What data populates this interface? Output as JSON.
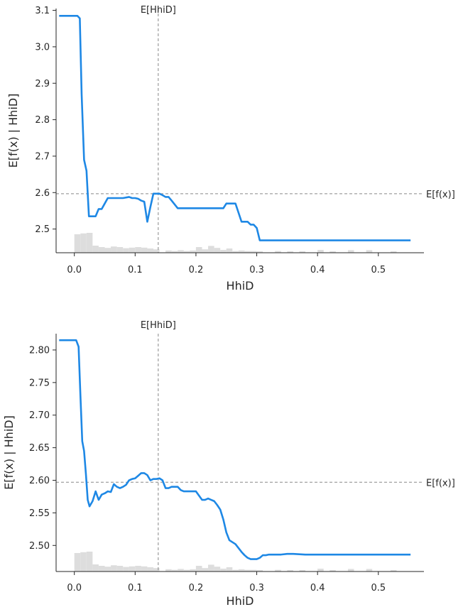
{
  "chart_data": [
    {
      "type": "line",
      "title": "",
      "xlabel": "HhiD",
      "ylabel": "E[f(x) | HhiD]",
      "xlim": [
        -0.03,
        0.575
      ],
      "ylim": [
        2.435,
        3.105
      ],
      "xticks": [
        0.0,
        0.1,
        0.2,
        0.3,
        0.4,
        0.5
      ],
      "xtick_labels": [
        "0.0",
        "0.1",
        "0.2",
        "0.3",
        "0.4",
        "0.5"
      ],
      "yticks": [
        2.5,
        2.6,
        2.7,
        2.8,
        2.9,
        3.0,
        3.1
      ],
      "ytick_labels": [
        "2.5",
        "2.6",
        "2.7",
        "2.8",
        "2.9",
        "3.0",
        "3.1"
      ],
      "grid": false,
      "line_color": "#1E88E5",
      "expected_x": 0.138,
      "expected_x_label": "E[HhiD]",
      "expected_y": 2.597,
      "expected_y_label": "E[f(x)]",
      "histogram": {
        "color": "#dddddd",
        "bins": [
          {
            "x0": 0.0,
            "x1": 0.01,
            "height": 0.65
          },
          {
            "x0": 0.01,
            "x1": 0.02,
            "height": 0.68
          },
          {
            "x0": 0.02,
            "x1": 0.03,
            "height": 0.7
          },
          {
            "x0": 0.03,
            "x1": 0.04,
            "height": 0.25
          },
          {
            "x0": 0.04,
            "x1": 0.05,
            "height": 0.2
          },
          {
            "x0": 0.05,
            "x1": 0.06,
            "height": 0.17
          },
          {
            "x0": 0.06,
            "x1": 0.07,
            "height": 0.22
          },
          {
            "x0": 0.07,
            "x1": 0.08,
            "height": 0.2
          },
          {
            "x0": 0.08,
            "x1": 0.09,
            "height": 0.16
          },
          {
            "x0": 0.09,
            "x1": 0.1,
            "height": 0.18
          },
          {
            "x0": 0.1,
            "x1": 0.11,
            "height": 0.2
          },
          {
            "x0": 0.11,
            "x1": 0.12,
            "height": 0.18
          },
          {
            "x0": 0.12,
            "x1": 0.13,
            "height": 0.15
          },
          {
            "x0": 0.13,
            "x1": 0.14,
            "height": 0.12
          },
          {
            "x0": 0.15,
            "x1": 0.16,
            "height": 0.08
          },
          {
            "x0": 0.16,
            "x1": 0.17,
            "height": 0.06
          },
          {
            "x0": 0.17,
            "x1": 0.18,
            "height": 0.09
          },
          {
            "x0": 0.18,
            "x1": 0.19,
            "height": 0.06
          },
          {
            "x0": 0.19,
            "x1": 0.2,
            "height": 0.08
          },
          {
            "x0": 0.2,
            "x1": 0.21,
            "height": 0.2
          },
          {
            "x0": 0.21,
            "x1": 0.22,
            "height": 0.12
          },
          {
            "x0": 0.22,
            "x1": 0.23,
            "height": 0.24
          },
          {
            "x0": 0.23,
            "x1": 0.24,
            "height": 0.17
          },
          {
            "x0": 0.24,
            "x1": 0.25,
            "height": 0.1
          },
          {
            "x0": 0.25,
            "x1": 0.26,
            "height": 0.15
          },
          {
            "x0": 0.26,
            "x1": 0.27,
            "height": 0.06
          },
          {
            "x0": 0.27,
            "x1": 0.28,
            "height": 0.08
          },
          {
            "x0": 0.28,
            "x1": 0.29,
            "height": 0.06
          },
          {
            "x0": 0.29,
            "x1": 0.3,
            "height": 0.06
          },
          {
            "x0": 0.3,
            "x1": 0.31,
            "height": 0.05
          },
          {
            "x0": 0.33,
            "x1": 0.34,
            "height": 0.06
          },
          {
            "x0": 0.35,
            "x1": 0.36,
            "height": 0.05
          },
          {
            "x0": 0.37,
            "x1": 0.38,
            "height": 0.05
          },
          {
            "x0": 0.4,
            "x1": 0.41,
            "height": 0.1
          },
          {
            "x0": 0.42,
            "x1": 0.43,
            "height": 0.05
          },
          {
            "x0": 0.45,
            "x1": 0.46,
            "height": 0.09
          },
          {
            "x0": 0.48,
            "x1": 0.49,
            "height": 0.09
          },
          {
            "x0": 0.52,
            "x1": 0.53,
            "height": 0.05
          }
        ]
      },
      "series": [
        {
          "x": [
            -0.025,
            0.005,
            0.009,
            0.012,
            0.016,
            0.02,
            0.024,
            0.03,
            0.035,
            0.04,
            0.045,
            0.05,
            0.055,
            0.06,
            0.065,
            0.07,
            0.08,
            0.09,
            0.095,
            0.1,
            0.105,
            0.11,
            0.115,
            0.12,
            0.125,
            0.13,
            0.135,
            0.14,
            0.145,
            0.15,
            0.155,
            0.16,
            0.17,
            0.18,
            0.19,
            0.2,
            0.21,
            0.22,
            0.23,
            0.24,
            0.245,
            0.25,
            0.255,
            0.26,
            0.265,
            0.27,
            0.275,
            0.28,
            0.285,
            0.29,
            0.295,
            0.3,
            0.305,
            0.35,
            0.4,
            0.45,
            0.5,
            0.553
          ],
          "y": [
            3.085,
            3.085,
            3.078,
            2.87,
            2.69,
            2.66,
            2.535,
            2.535,
            2.535,
            2.555,
            2.555,
            2.57,
            2.585,
            2.585,
            2.585,
            2.585,
            2.585,
            2.588,
            2.585,
            2.585,
            2.583,
            2.578,
            2.575,
            2.52,
            2.56,
            2.597,
            2.597,
            2.597,
            2.593,
            2.588,
            2.588,
            2.578,
            2.557,
            2.557,
            2.557,
            2.557,
            2.557,
            2.557,
            2.557,
            2.557,
            2.557,
            2.57,
            2.57,
            2.57,
            2.57,
            2.545,
            2.52,
            2.52,
            2.52,
            2.512,
            2.512,
            2.503,
            2.469,
            2.469,
            2.469,
            2.469,
            2.469,
            2.469
          ]
        }
      ]
    },
    {
      "type": "line",
      "title": "",
      "xlabel": "HhiD",
      "ylabel": "E[f(x) | HhiD]",
      "xlim": [
        -0.03,
        0.575
      ],
      "ylim": [
        2.46,
        2.825
      ],
      "xticks": [
        0.0,
        0.1,
        0.2,
        0.3,
        0.4,
        0.5
      ],
      "xtick_labels": [
        "0.0",
        "0.1",
        "0.2",
        "0.3",
        "0.4",
        "0.5"
      ],
      "yticks": [
        2.5,
        2.55,
        2.6,
        2.65,
        2.7,
        2.75,
        2.8
      ],
      "ytick_labels": [
        "2.50",
        "2.55",
        "2.60",
        "2.65",
        "2.70",
        "2.75",
        "2.80"
      ],
      "grid": false,
      "line_color": "#1E88E5",
      "expected_x": 0.138,
      "expected_x_label": "E[HhiD]",
      "expected_y": 2.597,
      "expected_y_label": "E[f(x)]",
      "histogram": {
        "color": "#dddddd",
        "bins": [
          {
            "x0": 0.0,
            "x1": 0.01,
            "height": 0.65
          },
          {
            "x0": 0.01,
            "x1": 0.02,
            "height": 0.68
          },
          {
            "x0": 0.02,
            "x1": 0.03,
            "height": 0.7
          },
          {
            "x0": 0.03,
            "x1": 0.04,
            "height": 0.25
          },
          {
            "x0": 0.04,
            "x1": 0.05,
            "height": 0.2
          },
          {
            "x0": 0.05,
            "x1": 0.06,
            "height": 0.17
          },
          {
            "x0": 0.06,
            "x1": 0.07,
            "height": 0.22
          },
          {
            "x0": 0.07,
            "x1": 0.08,
            "height": 0.2
          },
          {
            "x0": 0.08,
            "x1": 0.09,
            "height": 0.16
          },
          {
            "x0": 0.09,
            "x1": 0.1,
            "height": 0.18
          },
          {
            "x0": 0.1,
            "x1": 0.11,
            "height": 0.2
          },
          {
            "x0": 0.11,
            "x1": 0.12,
            "height": 0.18
          },
          {
            "x0": 0.12,
            "x1": 0.13,
            "height": 0.15
          },
          {
            "x0": 0.13,
            "x1": 0.14,
            "height": 0.12
          },
          {
            "x0": 0.15,
            "x1": 0.16,
            "height": 0.08
          },
          {
            "x0": 0.16,
            "x1": 0.17,
            "height": 0.06
          },
          {
            "x0": 0.17,
            "x1": 0.18,
            "height": 0.09
          },
          {
            "x0": 0.18,
            "x1": 0.19,
            "height": 0.06
          },
          {
            "x0": 0.19,
            "x1": 0.2,
            "height": 0.08
          },
          {
            "x0": 0.2,
            "x1": 0.21,
            "height": 0.2
          },
          {
            "x0": 0.21,
            "x1": 0.22,
            "height": 0.12
          },
          {
            "x0": 0.22,
            "x1": 0.23,
            "height": 0.24
          },
          {
            "x0": 0.23,
            "x1": 0.24,
            "height": 0.17
          },
          {
            "x0": 0.24,
            "x1": 0.25,
            "height": 0.1
          },
          {
            "x0": 0.25,
            "x1": 0.26,
            "height": 0.15
          },
          {
            "x0": 0.26,
            "x1": 0.27,
            "height": 0.06
          },
          {
            "x0": 0.27,
            "x1": 0.28,
            "height": 0.08
          },
          {
            "x0": 0.28,
            "x1": 0.29,
            "height": 0.06
          },
          {
            "x0": 0.29,
            "x1": 0.3,
            "height": 0.06
          },
          {
            "x0": 0.3,
            "x1": 0.31,
            "height": 0.05
          },
          {
            "x0": 0.33,
            "x1": 0.34,
            "height": 0.06
          },
          {
            "x0": 0.35,
            "x1": 0.36,
            "height": 0.05
          },
          {
            "x0": 0.37,
            "x1": 0.38,
            "height": 0.05
          },
          {
            "x0": 0.4,
            "x1": 0.41,
            "height": 0.1
          },
          {
            "x0": 0.42,
            "x1": 0.43,
            "height": 0.05
          },
          {
            "x0": 0.45,
            "x1": 0.46,
            "height": 0.09
          },
          {
            "x0": 0.48,
            "x1": 0.49,
            "height": 0.09
          },
          {
            "x0": 0.52,
            "x1": 0.53,
            "height": 0.05
          }
        ]
      },
      "series": [
        {
          "x": [
            -0.025,
            0.003,
            0.007,
            0.01,
            0.013,
            0.016,
            0.019,
            0.022,
            0.025,
            0.03,
            0.035,
            0.04,
            0.045,
            0.05,
            0.055,
            0.06,
            0.065,
            0.07,
            0.075,
            0.08,
            0.085,
            0.09,
            0.095,
            0.1,
            0.105,
            0.11,
            0.115,
            0.12,
            0.125,
            0.13,
            0.135,
            0.14,
            0.145,
            0.15,
            0.155,
            0.16,
            0.165,
            0.17,
            0.175,
            0.18,
            0.19,
            0.2,
            0.21,
            0.215,
            0.22,
            0.225,
            0.23,
            0.235,
            0.24,
            0.245,
            0.25,
            0.255,
            0.26,
            0.265,
            0.27,
            0.275,
            0.28,
            0.285,
            0.29,
            0.295,
            0.3,
            0.305,
            0.31,
            0.315,
            0.32,
            0.33,
            0.34,
            0.35,
            0.36,
            0.38,
            0.4,
            0.45,
            0.5,
            0.553
          ],
          "y": [
            2.815,
            2.815,
            2.805,
            2.73,
            2.66,
            2.645,
            2.61,
            2.57,
            2.56,
            2.568,
            2.583,
            2.57,
            2.578,
            2.58,
            2.583,
            2.582,
            2.594,
            2.59,
            2.588,
            2.59,
            2.593,
            2.6,
            2.602,
            2.603,
            2.607,
            2.611,
            2.611,
            2.608,
            2.6,
            2.602,
            2.602,
            2.603,
            2.6,
            2.588,
            2.588,
            2.59,
            2.59,
            2.59,
            2.585,
            2.583,
            2.583,
            2.583,
            2.57,
            2.57,
            2.572,
            2.57,
            2.568,
            2.562,
            2.555,
            2.54,
            2.52,
            2.508,
            2.505,
            2.502,
            2.496,
            2.49,
            2.485,
            2.481,
            2.479,
            2.479,
            2.479,
            2.481,
            2.485,
            2.485,
            2.486,
            2.486,
            2.486,
            2.487,
            2.487,
            2.486,
            2.486,
            2.486,
            2.486,
            2.486
          ]
        }
      ]
    }
  ]
}
